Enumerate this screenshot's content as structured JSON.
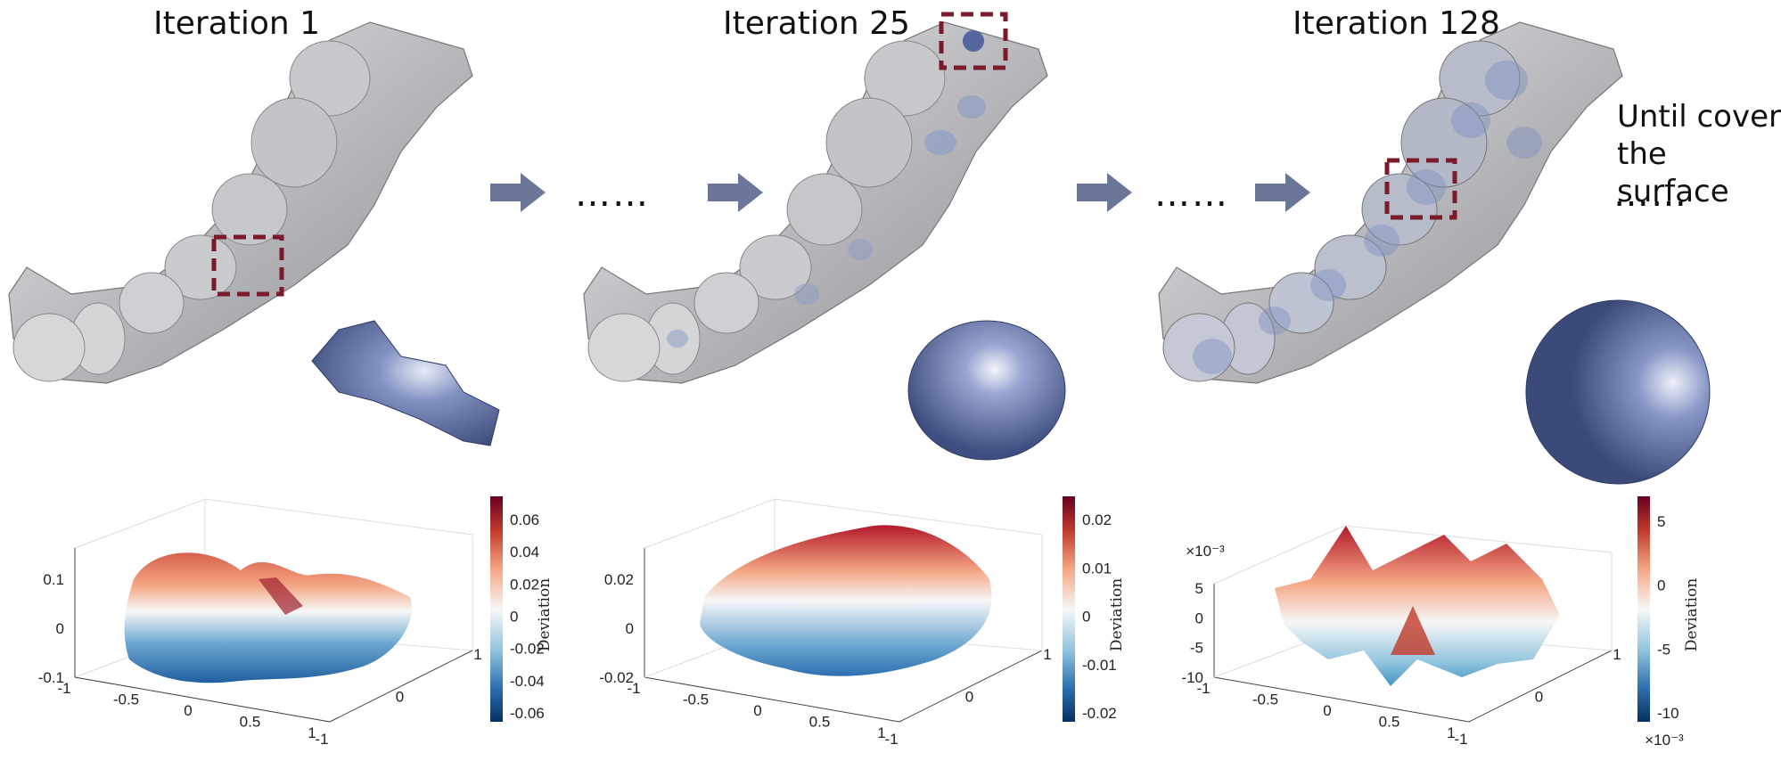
{
  "titles": [
    "Iteration 1",
    "Iteration 25",
    "Iteration 128"
  ],
  "side_text": {
    "line1": "Until cover",
    "line2": "the surface"
  },
  "ellipsis": "……",
  "colors": {
    "arrow": "#6b7699",
    "dash_box": "#7a1a2a",
    "tooth": "#bfc0c2",
    "patch": "#3b4a78"
  },
  "icons": [
    "arrow-right-icon",
    "tooth-model-icon",
    "surface-patch-icon",
    "dashed-selection-box-icon"
  ],
  "chart_data": [
    {
      "type": "surface",
      "z_ticks": [
        "0.1",
        "0",
        "-0.1"
      ],
      "x_ticks": [
        "-1",
        "-0.5",
        "0",
        "0.5",
        "1"
      ],
      "y_ticks": [
        "1",
        "0",
        "-1"
      ],
      "colorbar": {
        "label": "Deviation",
        "ticks": [
          "0.06",
          "0.04",
          "0.02",
          "0",
          "-0.02",
          "-0.04",
          "-0.06"
        ],
        "exponent": ""
      },
      "z_exponent": ""
    },
    {
      "type": "surface",
      "z_ticks": [
        "0.02",
        "0",
        "-0.02"
      ],
      "x_ticks": [
        "-1",
        "-0.5",
        "0",
        "0.5",
        "1"
      ],
      "y_ticks": [
        "1",
        "0",
        "-1"
      ],
      "colorbar": {
        "label": "Deviation",
        "ticks": [
          "0.02",
          "0.01",
          "0",
          "-0.01",
          "-0.02"
        ],
        "exponent": ""
      },
      "z_exponent": ""
    },
    {
      "type": "surface",
      "z_ticks": [
        "5",
        "0",
        "-5",
        "-10"
      ],
      "x_ticks": [
        "-1",
        "-0.5",
        "0",
        "0.5",
        "1"
      ],
      "y_ticks": [
        "1",
        "0",
        "-1"
      ],
      "colorbar": {
        "label": "Deviation",
        "ticks": [
          "5",
          "0",
          "-5",
          "-10"
        ],
        "exponent": "×10⁻³"
      },
      "z_exponent": "×10⁻³"
    }
  ]
}
